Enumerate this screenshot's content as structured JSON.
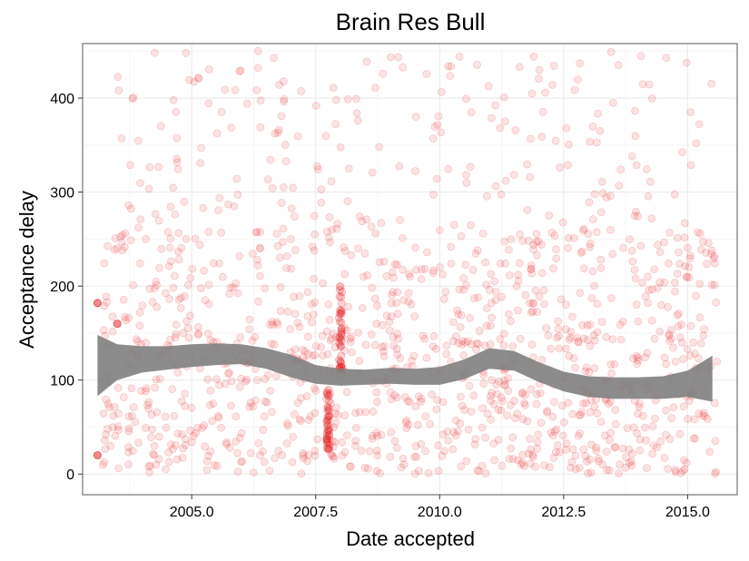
{
  "chart_data": {
    "type": "scatter",
    "title": "Brain Res Bull",
    "xlabel": "Date accepted",
    "ylabel": "Acceptance delay",
    "xlim": [
      2002.8,
      2016.0
    ],
    "ylim": [
      -22,
      458
    ],
    "x_ticks": [
      2005.0,
      2007.5,
      2010.0,
      2012.5,
      2015.0
    ],
    "x_tick_labels": [
      "2005.0",
      "2007.5",
      "2010.0",
      "2012.5",
      "2015.0"
    ],
    "y_ticks": [
      0,
      100,
      200,
      300,
      400
    ],
    "y_tick_labels": [
      "0",
      "100",
      "200",
      "300",
      "400"
    ],
    "grid": true,
    "legend": "none",
    "point_color": "#e41a1c",
    "smooth_color": "#7f7f7f",
    "highlighted_points": [
      {
        "x": 2003.1,
        "y": 20
      },
      {
        "x": 2003.1,
        "y": 182
      },
      {
        "x": 2003.5,
        "y": 160
      }
    ],
    "scattered_points_description_free": true,
    "density_regions": [
      {
        "x_from": 2003.2,
        "x_to": 2015.6,
        "y_from": 0,
        "y_to": 450
      }
    ],
    "vertical_clusters": [
      {
        "x": 2007.75,
        "y_from": 25,
        "y_to": 90
      },
      {
        "x": 2008.0,
        "y_from": 100,
        "y_to": 200
      }
    ],
    "smooth": {
      "x": [
        2003.1,
        2003.5,
        2004.0,
        2004.5,
        2005.0,
        2005.5,
        2006.0,
        2006.5,
        2007.0,
        2007.5,
        2008.0,
        2008.5,
        2009.0,
        2009.5,
        2010.0,
        2010.5,
        2011.0,
        2011.5,
        2012.0,
        2012.5,
        2013.0,
        2013.5,
        2014.0,
        2014.5,
        2015.0,
        2015.5
      ],
      "lower": [
        83,
        100,
        108,
        111,
        114,
        116,
        117,
        112,
        103,
        96,
        94,
        95,
        96,
        95,
        95,
        101,
        112,
        110,
        98,
        88,
        82,
        80,
        80,
        80,
        82,
        77
      ],
      "upper": [
        148,
        138,
        136,
        136,
        138,
        139,
        138,
        134,
        127,
        116,
        112,
        111,
        113,
        112,
        114,
        122,
        134,
        131,
        119,
        109,
        104,
        103,
        103,
        104,
        110,
        126
      ]
    }
  }
}
